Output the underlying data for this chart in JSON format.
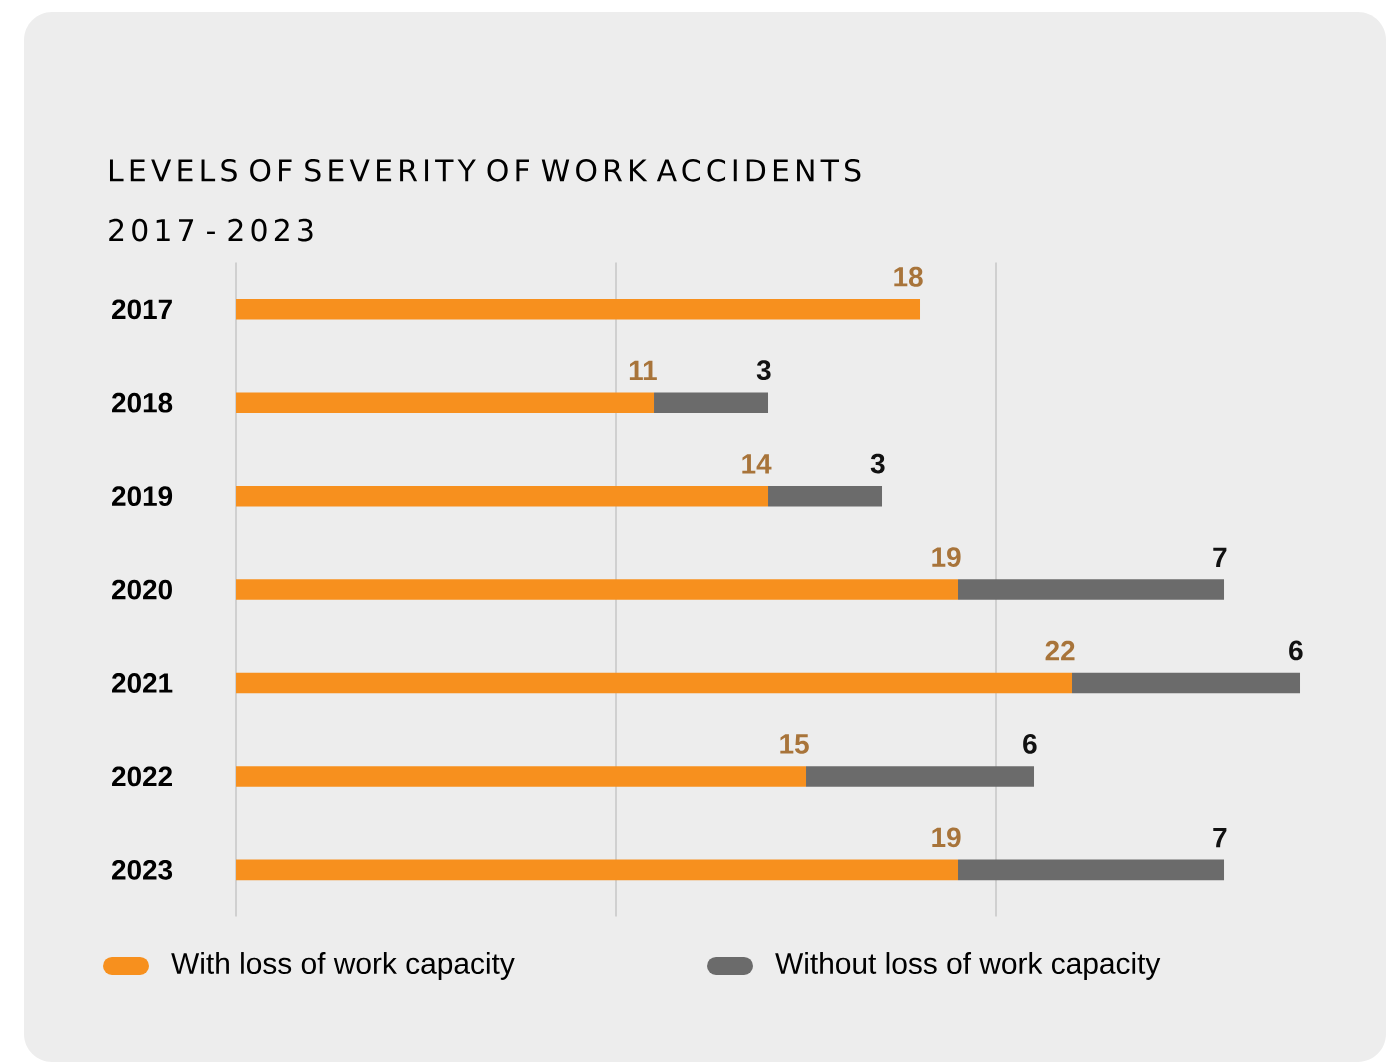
{
  "chart_data": {
    "type": "bar",
    "orientation": "horizontal",
    "stacked": true,
    "title": "LEVELS OF SEVERITY OF WORK ACCIDENTS 2017 - 2023",
    "categories": [
      "2017",
      "2018",
      "2019",
      "2020",
      "2021",
      "2022",
      "2023"
    ],
    "series": [
      {
        "name": "With loss of work capacity",
        "color": "#f7901e",
        "values": [
          18,
          11,
          14,
          19,
          22,
          15,
          19
        ]
      },
      {
        "name": "Without loss of work capacity",
        "color": "#6b6b6b",
        "values": [
          null,
          3,
          3,
          7,
          6,
          6,
          7
        ]
      }
    ],
    "ref_lines": [
      {
        "axis": "x",
        "value": 0,
        "color": "#d0d0d0"
      },
      {
        "axis": "x",
        "value": 10,
        "color": "#d0d0d0"
      },
      {
        "axis": "x",
        "value": 20,
        "color": "#d0d0d0"
      }
    ],
    "tick_labels": "y",
    "data_labels": true,
    "legend": "bottom"
  }
}
